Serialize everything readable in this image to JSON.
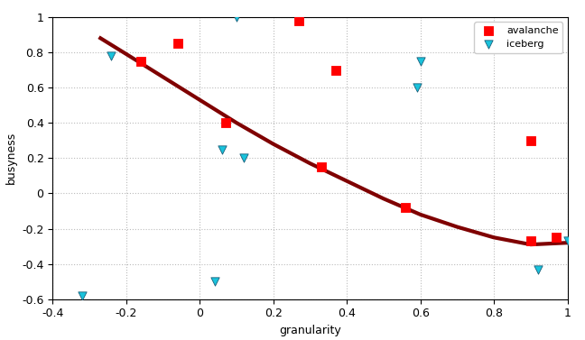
{
  "chart_data": {
    "type": "scatter",
    "x_label": "granularity",
    "y_label": "busyness",
    "xlim": [
      -0.4,
      1
    ],
    "ylim": [
      -0.6,
      1
    ],
    "xticks": [
      -0.4,
      -0.2,
      0,
      0.2,
      0.4,
      0.6,
      0.8,
      1
    ],
    "yticks": [
      -0.6,
      -0.4,
      -0.2,
      0,
      0.2,
      0.4,
      0.6,
      0.8,
      1
    ],
    "grid": true,
    "legend": "upper right",
    "series": [
      {
        "name": "avalanche",
        "type": "scatter",
        "marker": "square",
        "color": "#ff0000",
        "x": [
          -0.16,
          -0.06,
          0.27,
          0.37,
          0.07,
          0.33,
          0.56,
          0.9,
          0.9,
          0.97
        ],
        "values": [
          0.75,
          0.85,
          0.98,
          0.7,
          0.4,
          0.15,
          -0.08,
          0.3,
          -0.27,
          -0.25
        ]
      },
      {
        "name": "iceberg",
        "type": "scatter",
        "marker": "triangle_down",
        "color": "#19c3dc",
        "x": [
          -0.24,
          0.1,
          0.6,
          0.59,
          0.06,
          0.12,
          -0.32,
          0.04,
          0.92,
          1.0
        ],
        "values": [
          0.78,
          1.0,
          0.75,
          0.6,
          0.25,
          0.2,
          -0.58,
          -0.5,
          -0.43,
          -0.27
        ]
      },
      {
        "type": "line",
        "line_style": "solid",
        "color": "#7f0000",
        "x": [
          -0.27,
          -0.2,
          -0.1,
          0,
          0.1,
          0.2,
          0.3,
          0.4,
          0.5,
          0.6,
          0.7,
          0.8,
          0.9,
          1.0
        ],
        "values": [
          0.88,
          0.79,
          0.66,
          0.53,
          0.4,
          0.28,
          0.17,
          0.07,
          -0.03,
          -0.12,
          -0.19,
          -0.25,
          -0.29,
          -0.28
        ]
      }
    ]
  }
}
